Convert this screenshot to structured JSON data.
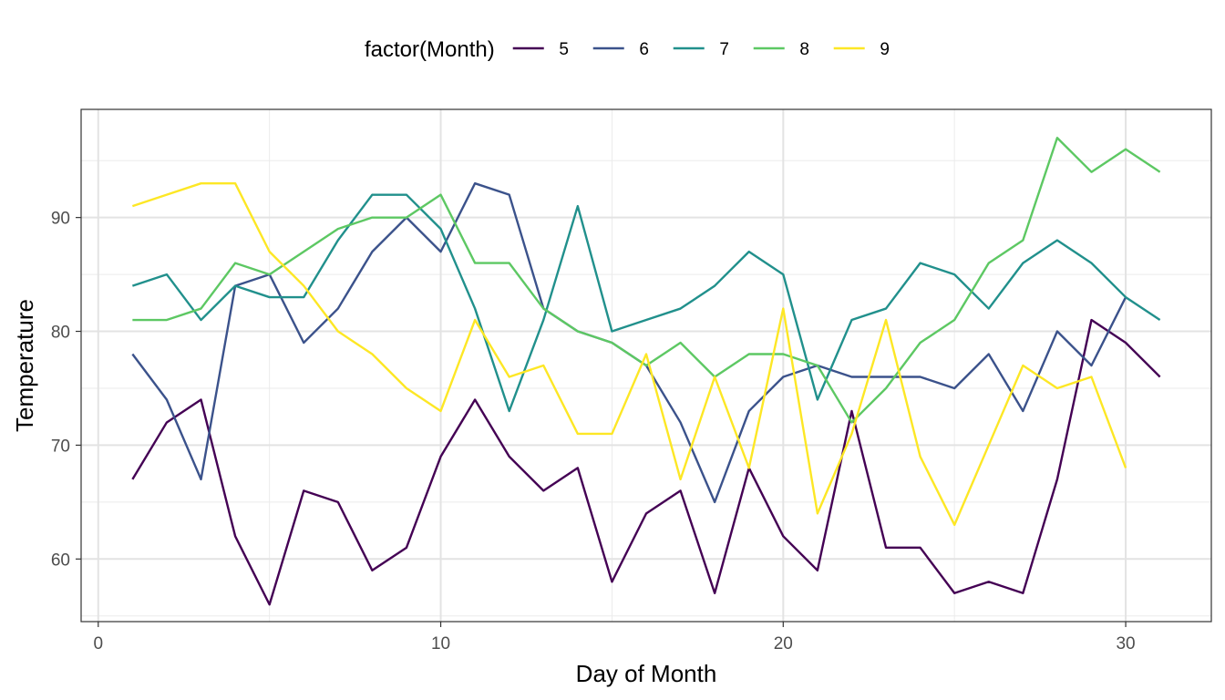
{
  "chart_data": {
    "type": "line",
    "title": "",
    "xlabel": "Day of Month",
    "ylabel": "Temperature",
    "xlim": [
      -0.5,
      32.5
    ],
    "ylim": [
      54.5,
      99.5
    ],
    "xticks": [
      0,
      10,
      20,
      30
    ],
    "xtick_labels": [
      "0",
      "10",
      "20",
      "30"
    ],
    "yticks": [
      60,
      70,
      80,
      90
    ],
    "ytick_labels": [
      "60",
      "70",
      "80",
      "90"
    ],
    "grid": true,
    "legend": {
      "title": "factor(Month)",
      "placement": "top"
    },
    "series": [
      {
        "name": "5",
        "color": "#440154",
        "x": [
          1,
          2,
          3,
          4,
          5,
          6,
          7,
          8,
          9,
          10,
          11,
          12,
          13,
          14,
          15,
          16,
          17,
          18,
          19,
          20,
          21,
          22,
          23,
          24,
          25,
          26,
          27,
          28,
          29,
          30,
          31
        ],
        "values": [
          67,
          72,
          74,
          62,
          56,
          66,
          65,
          59,
          61,
          69,
          74,
          69,
          66,
          68,
          58,
          64,
          66,
          57,
          68,
          62,
          59,
          73,
          61,
          61,
          57,
          58,
          57,
          67,
          81,
          79,
          76
        ]
      },
      {
        "name": "6",
        "color": "#3B528B",
        "x": [
          1,
          2,
          3,
          4,
          5,
          6,
          7,
          8,
          9,
          10,
          11,
          12,
          13,
          14,
          15,
          16,
          17,
          18,
          19,
          20,
          21,
          22,
          23,
          24,
          25,
          26,
          27,
          28,
          29,
          30
        ],
        "values": [
          78,
          74,
          67,
          84,
          85,
          79,
          82,
          87,
          90,
          87,
          93,
          92,
          82,
          80,
          79,
          77,
          72,
          65,
          73,
          76,
          77,
          76,
          76,
          76,
          75,
          78,
          73,
          80,
          77,
          83
        ]
      },
      {
        "name": "7",
        "color": "#21908C",
        "x": [
          1,
          2,
          3,
          4,
          5,
          6,
          7,
          8,
          9,
          10,
          11,
          12,
          13,
          14,
          15,
          16,
          17,
          18,
          19,
          20,
          21,
          22,
          23,
          24,
          25,
          26,
          27,
          28,
          29,
          30,
          31
        ],
        "values": [
          84,
          85,
          81,
          84,
          83,
          83,
          88,
          92,
          92,
          89,
          82,
          73,
          81,
          91,
          80,
          81,
          82,
          84,
          87,
          85,
          74,
          81,
          82,
          86,
          85,
          82,
          86,
          88,
          86,
          83,
          81
        ]
      },
      {
        "name": "8",
        "color": "#5DC863",
        "x": [
          1,
          2,
          3,
          4,
          5,
          6,
          7,
          8,
          9,
          10,
          11,
          12,
          13,
          14,
          15,
          16,
          17,
          18,
          19,
          20,
          21,
          22,
          23,
          24,
          25,
          26,
          27,
          28,
          29,
          30,
          31
        ],
        "values": [
          81,
          81,
          82,
          86,
          85,
          87,
          89,
          90,
          90,
          92,
          86,
          86,
          82,
          80,
          79,
          77,
          79,
          76,
          78,
          78,
          77,
          72,
          75,
          79,
          81,
          86,
          88,
          97,
          94,
          96,
          94
        ]
      },
      {
        "name": "9",
        "color": "#FDE725",
        "x": [
          1,
          2,
          3,
          4,
          5,
          6,
          7,
          8,
          9,
          10,
          11,
          12,
          13,
          14,
          15,
          16,
          17,
          18,
          19,
          20,
          21,
          22,
          23,
          24,
          25,
          26,
          27,
          28,
          29,
          30
        ],
        "values": [
          91,
          92,
          93,
          93,
          87,
          84,
          80,
          78,
          75,
          73,
          81,
          76,
          77,
          71,
          71,
          78,
          67,
          76,
          68,
          82,
          64,
          71,
          81,
          69,
          63,
          70,
          77,
          75,
          76,
          68
        ]
      }
    ]
  }
}
